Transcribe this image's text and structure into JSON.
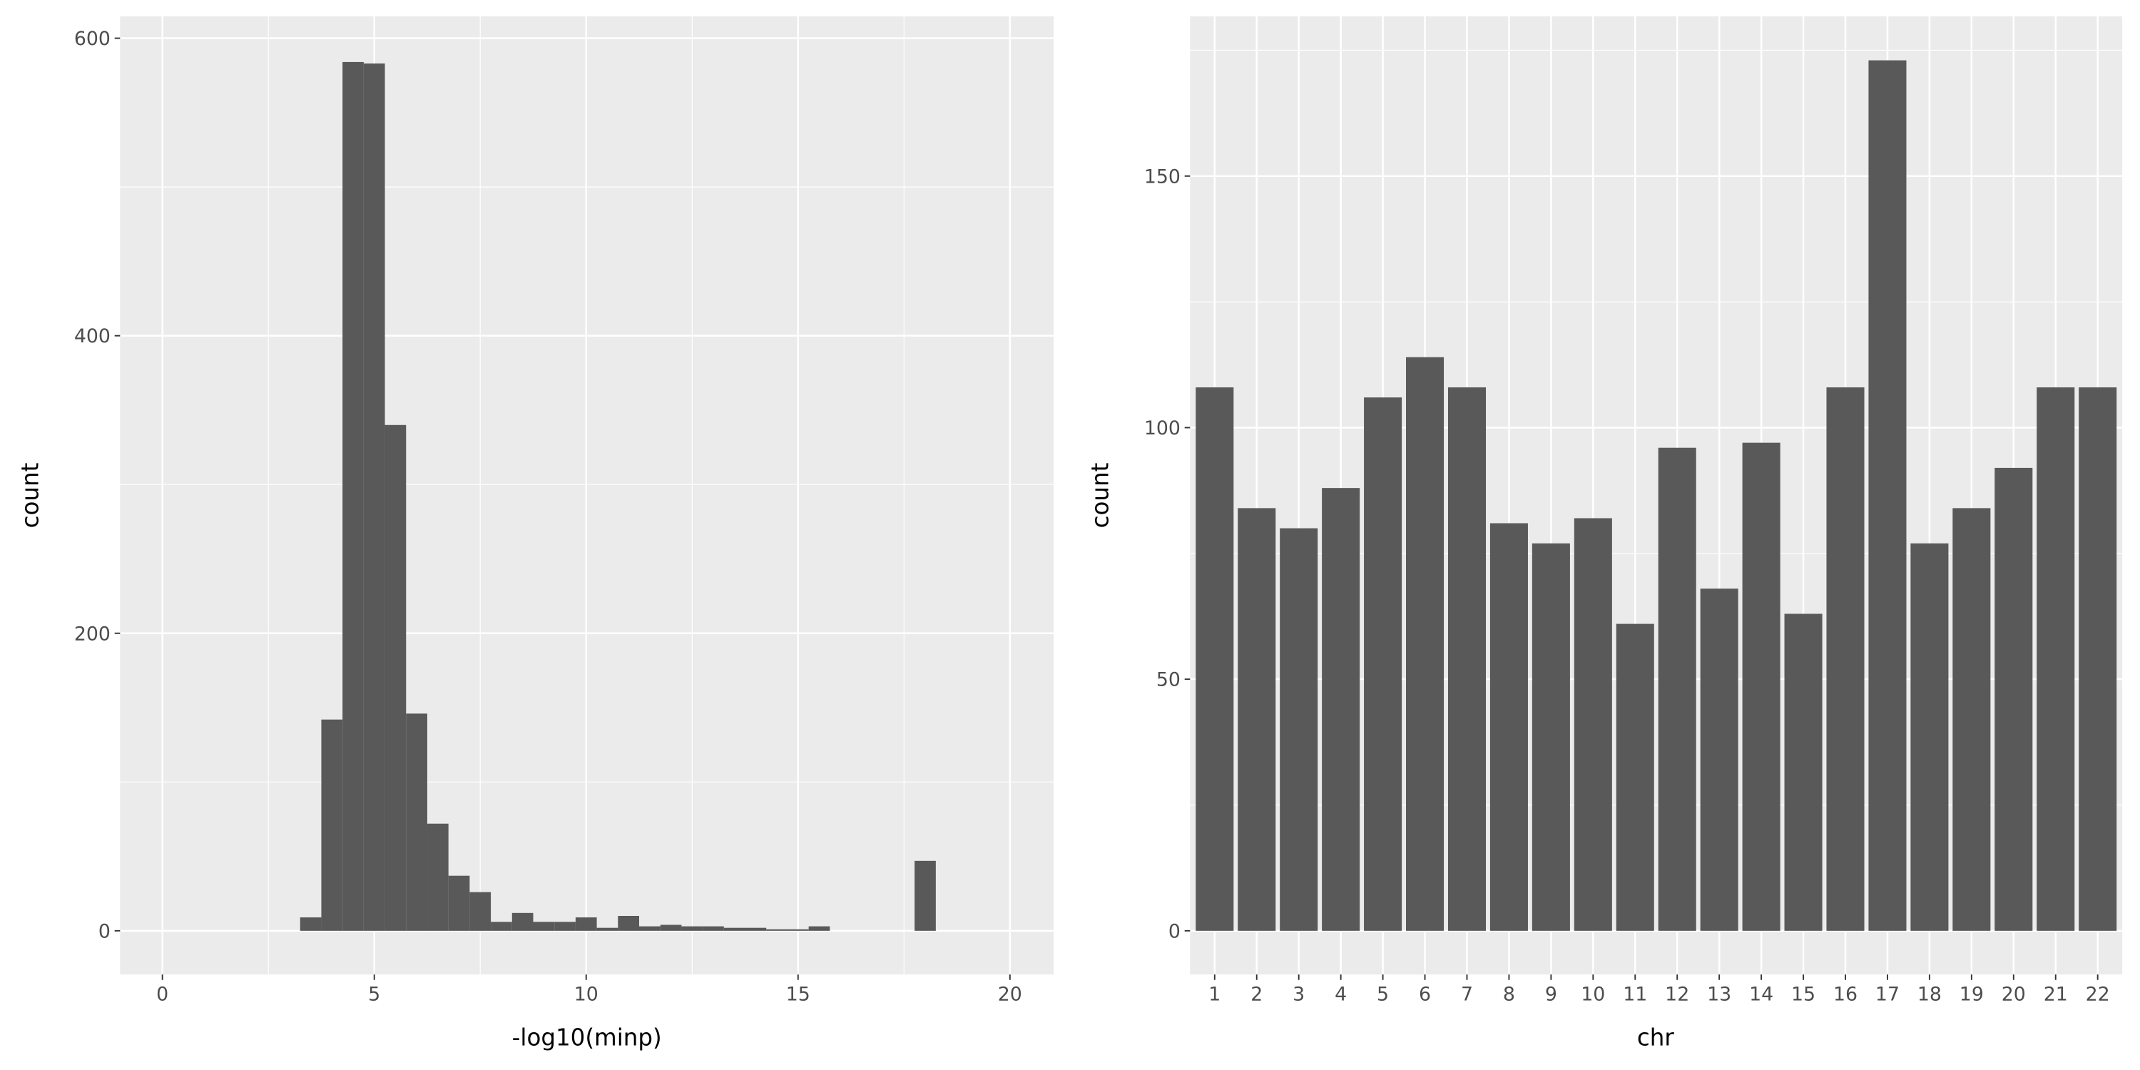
{
  "chart_data": [
    {
      "type": "bar",
      "subtype": "histogram",
      "xlabel": "-log10(minp)",
      "ylabel": "count",
      "xlim": [
        -1,
        21
      ],
      "ylim": [
        -30,
        615
      ],
      "x_ticks": [
        0,
        5,
        10,
        15,
        20
      ],
      "y_ticks": [
        0,
        200,
        400,
        600
      ],
      "grid": true,
      "bin_width": 0.5,
      "bin_centers": [
        3.5,
        4,
        4.5,
        5,
        5.5,
        6,
        6.5,
        7,
        7.5,
        8,
        8.5,
        9,
        9.5,
        10,
        10.5,
        11,
        11.5,
        12,
        12.5,
        13,
        13.5,
        14,
        14.5,
        15,
        15.5,
        16,
        16.5,
        17,
        17.5,
        18
      ],
      "values": [
        9,
        142,
        584,
        583,
        340,
        146,
        72,
        37,
        26,
        6,
        12,
        6,
        6,
        9,
        2,
        10,
        3,
        4,
        3,
        3,
        2,
        2,
        1,
        1,
        3,
        0,
        0,
        0,
        0,
        47
      ],
      "bar_color": "#595959",
      "panel_bg": "#ebebeb"
    },
    {
      "type": "bar",
      "xlabel": "chr",
      "ylabel": "count",
      "ylim": [
        -9,
        181
      ],
      "y_ticks": [
        0,
        50,
        100,
        150
      ],
      "grid": true,
      "categories": [
        "1",
        "2",
        "3",
        "4",
        "5",
        "6",
        "7",
        "8",
        "9",
        "10",
        "11",
        "12",
        "13",
        "14",
        "15",
        "16",
        "17",
        "18",
        "19",
        "20",
        "21",
        "22"
      ],
      "values": [
        108,
        84,
        80,
        88,
        106,
        114,
        108,
        81,
        77,
        82,
        61,
        96,
        68,
        97,
        63,
        108,
        173,
        77,
        84,
        92,
        108,
        108
      ],
      "bar_color": "#595959",
      "panel_bg": "#ebebeb"
    }
  ]
}
